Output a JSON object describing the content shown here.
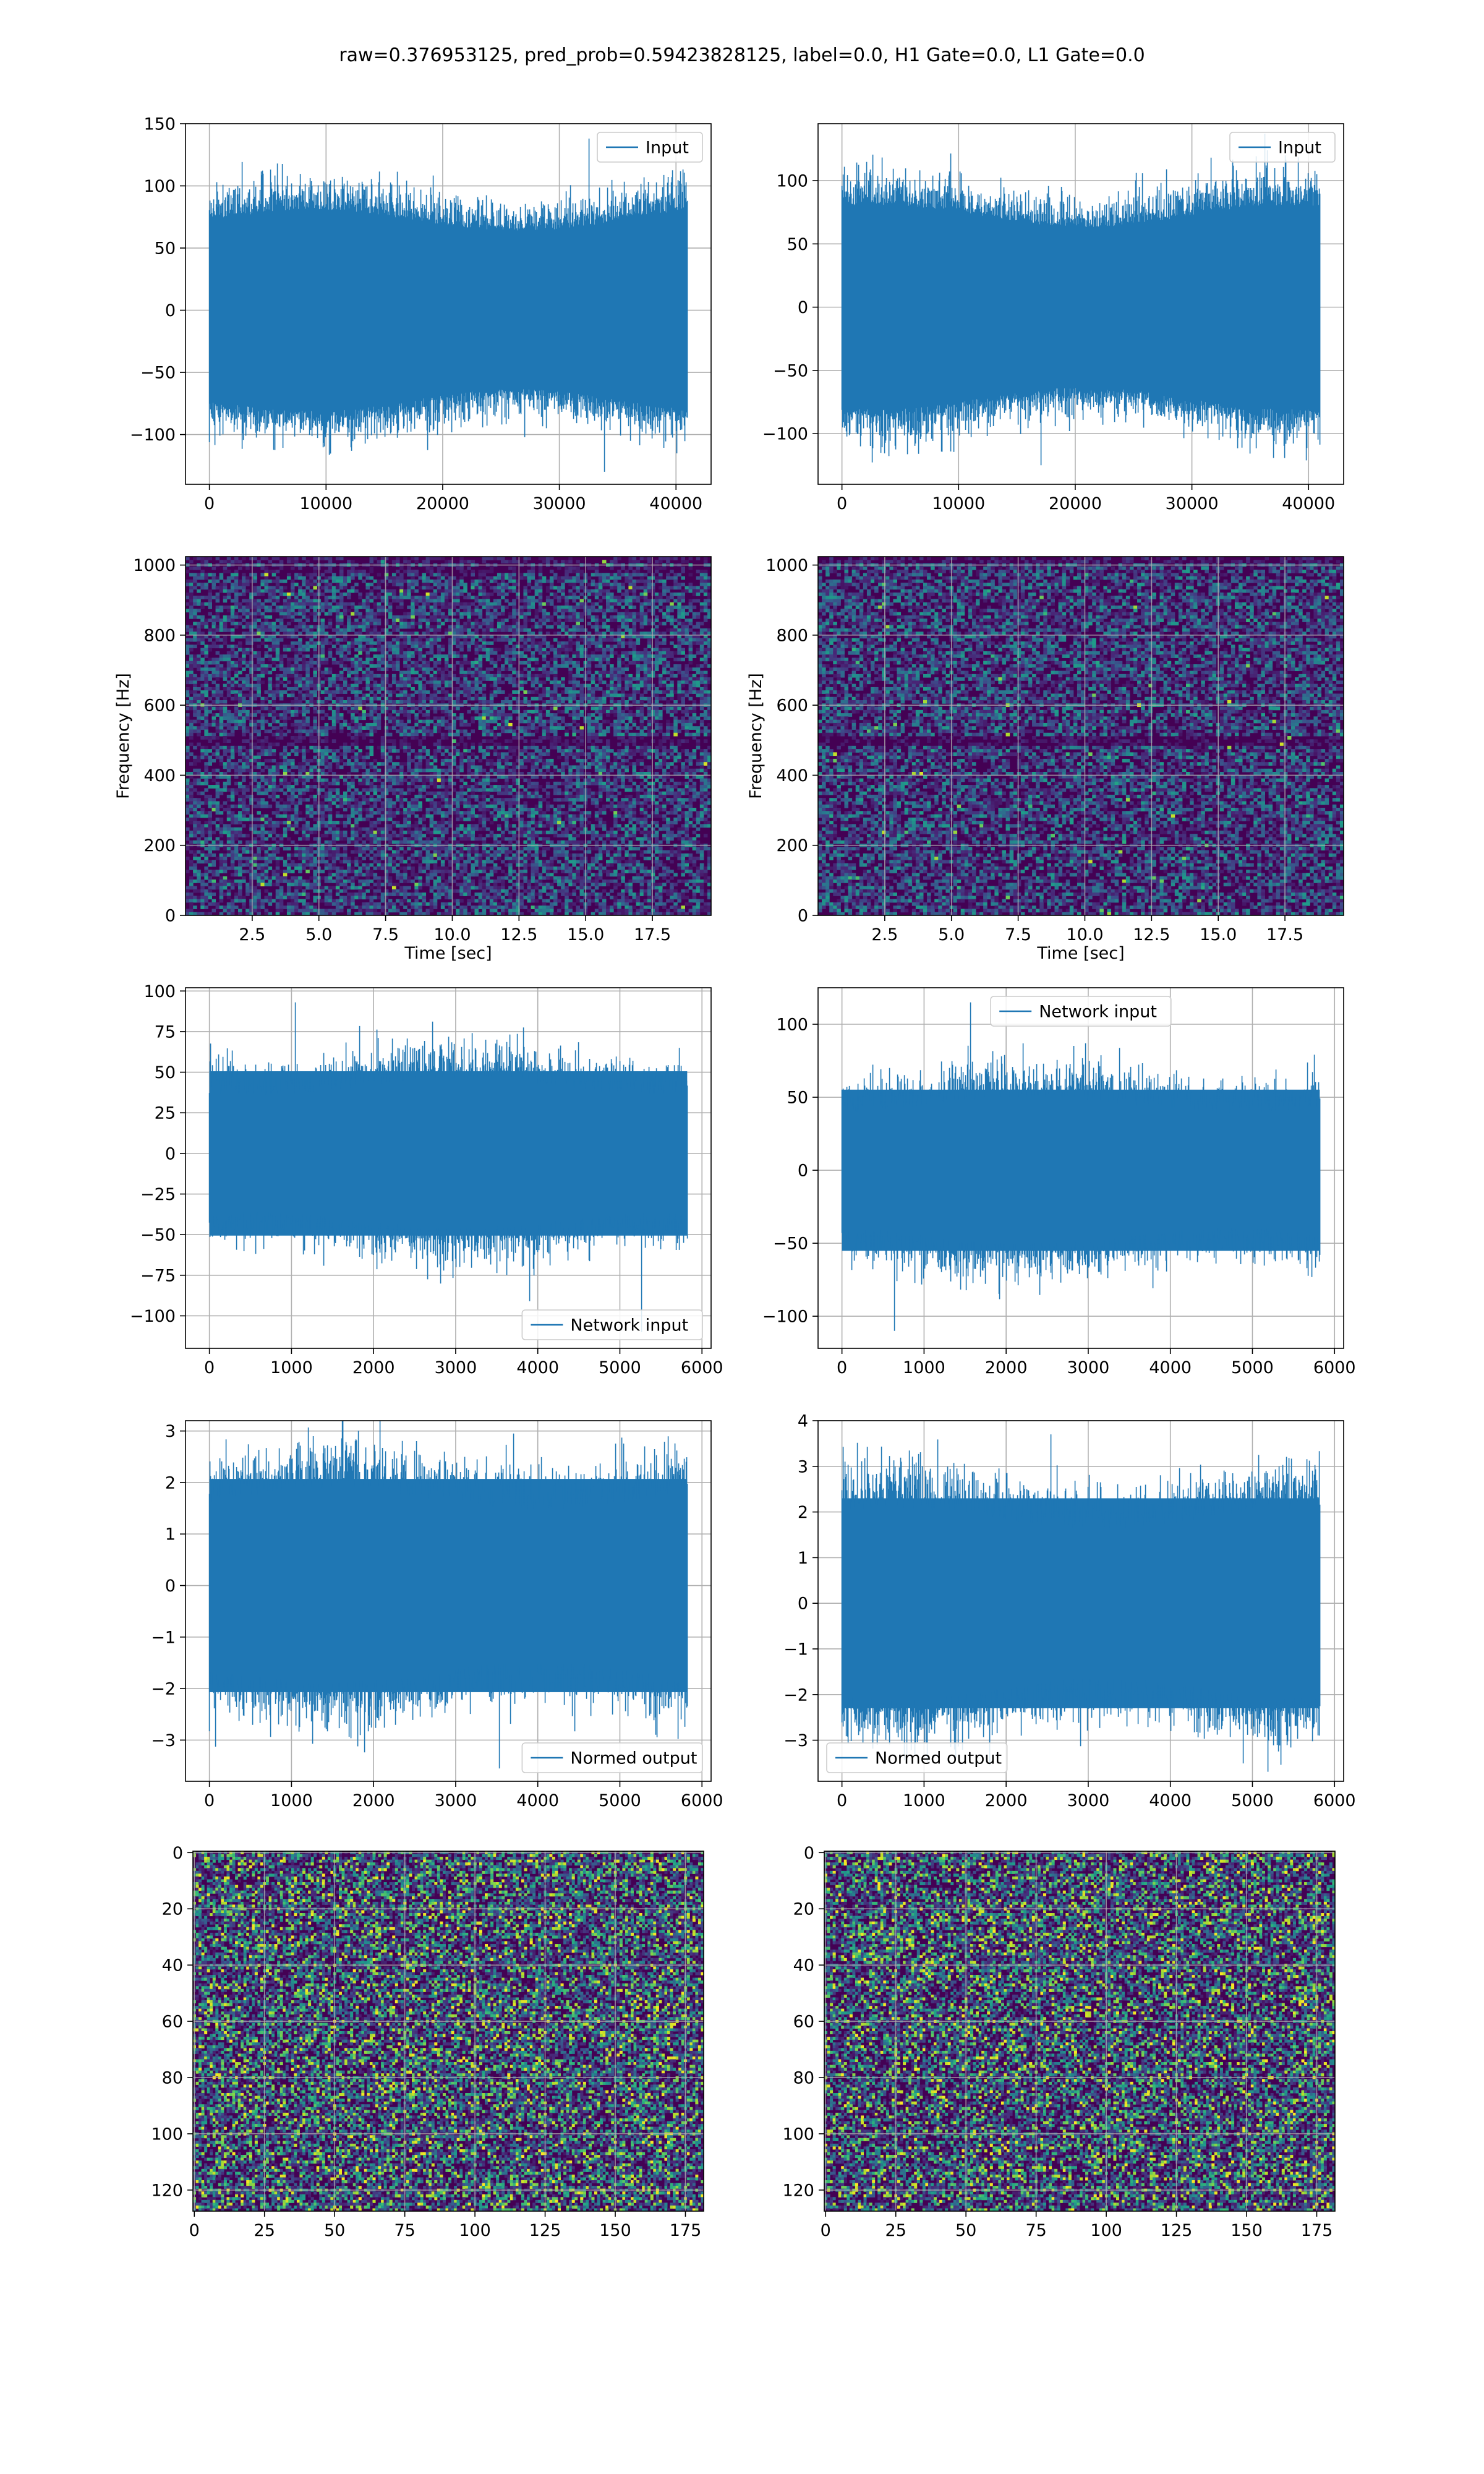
{
  "title": "raw=0.376953125, pred_prob=0.59423828125, label=0.0, H1 Gate=0.0, L1 Gate=0.0",
  "colors": {
    "series": "#1f77b4",
    "grid": "#b0b0b0",
    "viridis_low": "#440154",
    "viridis_mid": "#21918c",
    "viridis_high": "#fde725"
  },
  "chart_data": [
    {
      "id": "h1-input",
      "type": "line",
      "grid": true,
      "legend": {
        "label": "Input",
        "placement": "upper right"
      },
      "series": [
        {
          "name": "Input",
          "kind": "noise",
          "n": 40960,
          "amplitude_std": 27,
          "max": 138,
          "min": -130
        }
      ],
      "xlim": [
        -2048,
        43008
      ],
      "ylim": [
        -140,
        150
      ],
      "xticks": [
        0,
        10000,
        20000,
        30000,
        40000
      ],
      "xticklabels": [
        "0",
        "10000",
        "20000",
        "30000",
        "40000"
      ],
      "yticks": [
        -100,
        -50,
        0,
        50,
        100,
        150
      ],
      "yticklabels": [
        "−100",
        "−50",
        "0",
        "50",
        "100",
        "150"
      ],
      "xlabel": "",
      "ylabel": ""
    },
    {
      "id": "l1-input",
      "type": "line",
      "grid": true,
      "legend": {
        "label": "Input",
        "placement": "upper right"
      },
      "series": [
        {
          "name": "Input",
          "kind": "noise",
          "n": 40960,
          "amplitude_std": 27,
          "max": 137,
          "min": -125
        }
      ],
      "xlim": [
        -2048,
        43008
      ],
      "ylim": [
        -140,
        145
      ],
      "xticks": [
        0,
        10000,
        20000,
        30000,
        40000
      ],
      "xticklabels": [
        "0",
        "10000",
        "20000",
        "30000",
        "40000"
      ],
      "yticks": [
        -100,
        -50,
        0,
        50,
        100
      ],
      "yticklabels": [
        "−100",
        "−50",
        "0",
        "50",
        "100"
      ],
      "xlabel": "",
      "ylabel": ""
    },
    {
      "id": "h1-spectrogram",
      "type": "heatmap",
      "grid": true,
      "colormap": "viridis",
      "xlim": [
        0,
        19.7
      ],
      "ylim": [
        0,
        1024
      ],
      "xticks": [
        2.5,
        5.0,
        7.5,
        10.0,
        12.5,
        15.0,
        17.5
      ],
      "xticklabels": [
        "2.5",
        "5.0",
        "7.5",
        "10.0",
        "12.5",
        "15.0",
        "17.5"
      ],
      "yticks": [
        0,
        200,
        400,
        600,
        800,
        1000
      ],
      "yticklabels": [
        "0",
        "200",
        "400",
        "600",
        "800",
        "1000"
      ],
      "xlabel": "Time [sec]",
      "ylabel": "Frequency [Hz]",
      "dark_band_hz": [
        500,
        990
      ]
    },
    {
      "id": "l1-spectrogram",
      "type": "heatmap",
      "grid": true,
      "colormap": "viridis",
      "xlim": [
        0,
        19.7
      ],
      "ylim": [
        0,
        1024
      ],
      "xticks": [
        2.5,
        5.0,
        7.5,
        10.0,
        12.5,
        15.0,
        17.5
      ],
      "xticklabels": [
        "2.5",
        "5.0",
        "7.5",
        "10.0",
        "12.5",
        "15.0",
        "17.5"
      ],
      "yticks": [
        0,
        200,
        400,
        600,
        800,
        1000
      ],
      "yticklabels": [
        "0",
        "200",
        "400",
        "600",
        "800",
        "1000"
      ],
      "xlabel": "Time [sec]",
      "ylabel": "Frequency [Hz]",
      "dark_band_hz": [
        500,
        1010
      ]
    },
    {
      "id": "h1-network-input",
      "type": "line",
      "grid": true,
      "legend": {
        "label": "Network input",
        "placement": "lower right"
      },
      "series": [
        {
          "name": "Network input",
          "kind": "noise",
          "n": 5820,
          "amplitude_std": 22,
          "max": 93,
          "min": -110
        }
      ],
      "xlim": [
        -291,
        6111
      ],
      "ylim": [
        -120,
        102
      ],
      "xticks": [
        0,
        1000,
        2000,
        3000,
        4000,
        5000,
        6000
      ],
      "xticklabels": [
        "0",
        "1000",
        "2000",
        "3000",
        "4000",
        "5000",
        "6000"
      ],
      "yticks": [
        -100,
        -75,
        -50,
        -25,
        0,
        25,
        50,
        75,
        100
      ],
      "yticklabels": [
        "−100",
        "−75",
        "−50",
        "−25",
        "0",
        "25",
        "50",
        "75",
        "100"
      ],
      "xlabel": "",
      "ylabel": ""
    },
    {
      "id": "l1-network-input",
      "type": "line",
      "grid": true,
      "legend": {
        "label": "Network input",
        "placement": "upper center"
      },
      "series": [
        {
          "name": "Network input",
          "kind": "noise",
          "n": 5820,
          "amplitude_std": 24,
          "max": 115,
          "min": -110
        }
      ],
      "xlim": [
        -291,
        6111
      ],
      "ylim": [
        -122,
        125
      ],
      "xticks": [
        0,
        1000,
        2000,
        3000,
        4000,
        5000,
        6000
      ],
      "xticklabels": [
        "0",
        "1000",
        "2000",
        "3000",
        "4000",
        "5000",
        "6000"
      ],
      "yticks": [
        -100,
        -50,
        0,
        50,
        100
      ],
      "yticklabels": [
        "−100",
        "−50",
        "0",
        "50",
        "100"
      ],
      "xlabel": "",
      "ylabel": ""
    },
    {
      "id": "h1-normed-output",
      "type": "line",
      "grid": true,
      "legend": {
        "label": "Normed output",
        "placement": "lower right"
      },
      "series": [
        {
          "name": "Normed output",
          "kind": "noise",
          "n": 5820,
          "amplitude_std": 0.9,
          "max": 2.95,
          "min": -3.55
        }
      ],
      "xlim": [
        -291,
        6111
      ],
      "ylim": [
        -3.8,
        3.2
      ],
      "xticks": [
        0,
        1000,
        2000,
        3000,
        4000,
        5000,
        6000
      ],
      "xticklabels": [
        "0",
        "1000",
        "2000",
        "3000",
        "4000",
        "5000",
        "6000"
      ],
      "yticks": [
        -3,
        -2,
        -1,
        0,
        1,
        2,
        3
      ],
      "yticklabels": [
        "−3",
        "−2",
        "−1",
        "0",
        "1",
        "2",
        "3"
      ],
      "xlabel": "",
      "ylabel": ""
    },
    {
      "id": "l1-normed-output",
      "type": "line",
      "grid": true,
      "legend": {
        "label": "Normed output",
        "placement": "lower left"
      },
      "series": [
        {
          "name": "Normed output",
          "kind": "noise",
          "n": 5820,
          "amplitude_std": 1.0,
          "max": 3.7,
          "min": -3.55
        }
      ],
      "xlim": [
        -291,
        6111
      ],
      "ylim": [
        -3.9,
        4.0
      ],
      "xticks": [
        0,
        1000,
        2000,
        3000,
        4000,
        5000,
        6000
      ],
      "xticklabels": [
        "0",
        "1000",
        "2000",
        "3000",
        "4000",
        "5000",
        "6000"
      ],
      "yticks": [
        -3,
        -2,
        -1,
        0,
        1,
        2,
        3,
        4
      ],
      "yticklabels": [
        "−3",
        "−2",
        "−1",
        "0",
        "1",
        "2",
        "3",
        "4"
      ],
      "xlabel": "",
      "ylabel": ""
    },
    {
      "id": "h1-image",
      "type": "heatmap",
      "grid": true,
      "colormap": "viridis",
      "rows": 128,
      "cols": 182,
      "origin": "upper",
      "xlim": [
        -0.5,
        181.5
      ],
      "ylim": [
        127.5,
        -0.5
      ],
      "xticks": [
        0,
        25,
        50,
        75,
        100,
        125,
        150,
        175
      ],
      "xticklabels": [
        "0",
        "25",
        "50",
        "75",
        "100",
        "125",
        "150",
        "175"
      ],
      "yticks": [
        0,
        20,
        40,
        60,
        80,
        100,
        120
      ],
      "yticklabels": [
        "0",
        "20",
        "40",
        "60",
        "80",
        "100",
        "120"
      ],
      "xlabel": "",
      "ylabel": ""
    },
    {
      "id": "l1-image",
      "type": "heatmap",
      "grid": true,
      "colormap": "viridis",
      "rows": 128,
      "cols": 182,
      "origin": "upper",
      "xlim": [
        -0.5,
        181.5
      ],
      "ylim": [
        127.5,
        -0.5
      ],
      "xticks": [
        0,
        25,
        50,
        75,
        100,
        125,
        150,
        175
      ],
      "xticklabels": [
        "0",
        "25",
        "50",
        "75",
        "100",
        "125",
        "150",
        "175"
      ],
      "yticks": [
        0,
        20,
        40,
        60,
        80,
        100,
        120
      ],
      "yticklabels": [
        "0",
        "20",
        "40",
        "60",
        "80",
        "100",
        "120"
      ],
      "xlabel": "",
      "ylabel": ""
    }
  ]
}
